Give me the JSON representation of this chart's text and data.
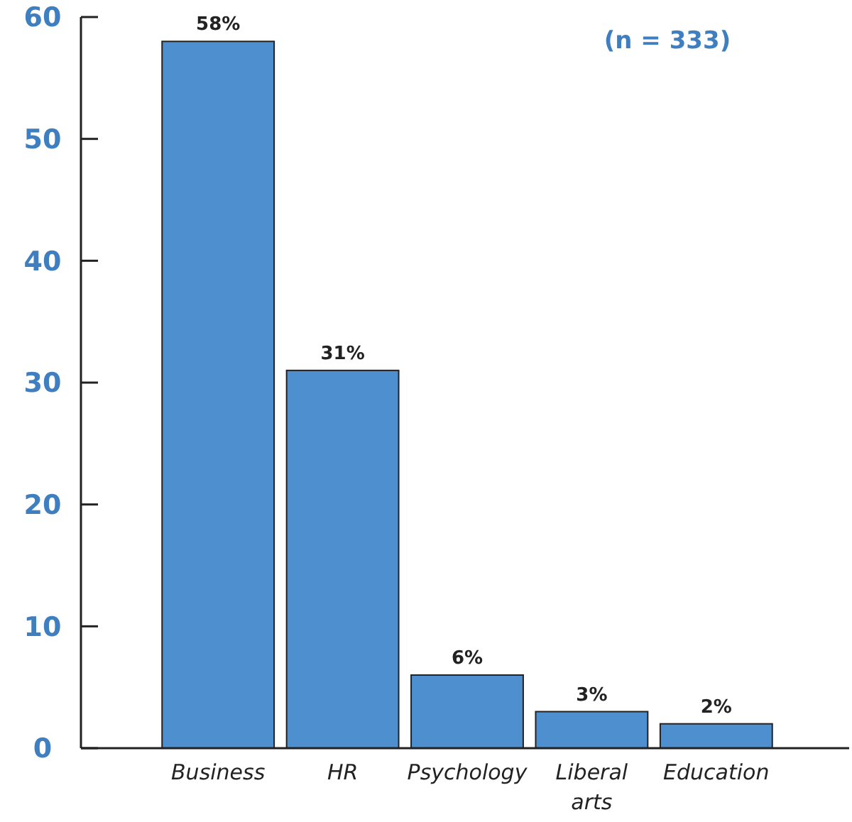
{
  "chart_data": {
    "type": "bar",
    "categories": [
      "Business",
      "HR",
      "Psychology",
      "Liberal arts",
      "Education"
    ],
    "values": [
      58,
      31,
      6,
      3,
      2
    ],
    "color": "#4e8fcf",
    "value_labels": [
      "58%",
      "31%",
      "6%",
      "3%",
      "2%"
    ],
    "ylim": [
      0,
      60
    ],
    "yticks": [
      0,
      10,
      20,
      30,
      40,
      50,
      60
    ],
    "grid": false,
    "annotations": [
      "(n = 333)"
    ]
  }
}
